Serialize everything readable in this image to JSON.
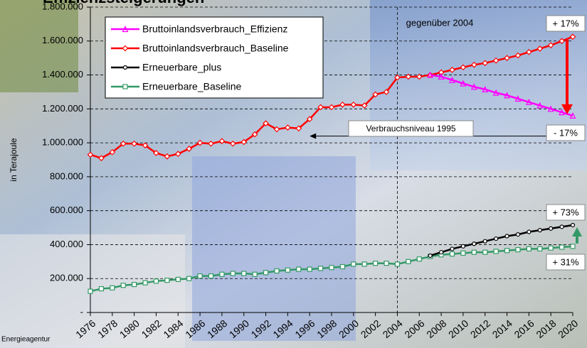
{
  "chart_data": {
    "type": "line",
    "title": "Effizienzsteigerungen",
    "y_label": "in Terajoule",
    "source": "Energieagentur",
    "x": [
      1976,
      1977,
      1978,
      1979,
      1980,
      1981,
      1982,
      1983,
      1984,
      1985,
      1986,
      1987,
      1988,
      1989,
      1990,
      1991,
      1992,
      1993,
      1994,
      1995,
      1996,
      1997,
      1998,
      1999,
      2000,
      2001,
      2002,
      2003,
      2004,
      2005,
      2006,
      2007,
      2008,
      2009,
      2010,
      2011,
      2012,
      2013,
      2014,
      2015,
      2016,
      2017,
      2018,
      2019,
      2020
    ],
    "xlim": [
      1976,
      2020
    ],
    "xticks": [
      1976,
      1978,
      1980,
      1982,
      1984,
      1986,
      1988,
      1990,
      1992,
      1994,
      1996,
      1998,
      2000,
      2002,
      2004,
      2006,
      2008,
      2010,
      2012,
      2014,
      2016,
      2018,
      2020
    ],
    "ylim": [
      0,
      1800000
    ],
    "yticks": [
      {
        "value": 0,
        "label": "-"
      },
      {
        "value": 200000,
        "label": "200.000"
      },
      {
        "value": 400000,
        "label": "400.000"
      },
      {
        "value": 600000,
        "label": "600.000"
      },
      {
        "value": 800000,
        "label": "800.000"
      },
      {
        "value": 1000000,
        "label": "1.000.000"
      },
      {
        "value": 1200000,
        "label": "1.200.000"
      },
      {
        "value": 1400000,
        "label": "1.400.000"
      },
      {
        "value": 1600000,
        "label": "1.600.000"
      },
      {
        "value": 1800000,
        "label": "1.800.000"
      }
    ],
    "grid": true,
    "legend": "upper left",
    "series": [
      {
        "name": "Bruttoinlandsverbrauch_Effizienz",
        "color": "#ff00ff",
        "marker": "triangle",
        "values": [
          null,
          null,
          null,
          null,
          null,
          null,
          null,
          null,
          null,
          null,
          null,
          null,
          null,
          null,
          null,
          null,
          null,
          null,
          null,
          null,
          null,
          null,
          null,
          null,
          null,
          null,
          null,
          null,
          null,
          null,
          null,
          1400000,
          1390000,
          1370000,
          1350000,
          1330000,
          1315000,
          1295000,
          1280000,
          1260000,
          1240000,
          1220000,
          1200000,
          1180000,
          1160000
        ]
      },
      {
        "name": "Bruttoinlandsverbrauch_Baseline",
        "color": "#ff0000",
        "marker": "diamond",
        "values": [
          930000,
          910000,
          945000,
          995000,
          995000,
          985000,
          940000,
          920000,
          935000,
          965000,
          1000000,
          995000,
          1010000,
          995000,
          1005000,
          1050000,
          1115000,
          1080000,
          1090000,
          1085000,
          1140000,
          1210000,
          1210000,
          1225000,
          1225000,
          1220000,
          1285000,
          1300000,
          1385000,
          1390000,
          1390000,
          1400000,
          1415000,
          1430000,
          1445000,
          1460000,
          1470000,
          1485000,
          1500000,
          1515000,
          1535000,
          1555000,
          1575000,
          1600000,
          1625000
        ]
      },
      {
        "name": "Erneuerbare_plus",
        "color": "#000000",
        "marker": "circle",
        "values": [
          null,
          null,
          null,
          null,
          null,
          null,
          null,
          null,
          null,
          null,
          null,
          null,
          null,
          null,
          null,
          null,
          null,
          null,
          null,
          null,
          null,
          null,
          null,
          null,
          null,
          null,
          null,
          null,
          null,
          null,
          null,
          335000,
          355000,
          375000,
          390000,
          405000,
          420000,
          435000,
          450000,
          460000,
          475000,
          485000,
          495000,
          505000,
          515000
        ]
      },
      {
        "name": "Erneuerbare_Baseline",
        "color": "#339966",
        "marker": "square",
        "values": [
          125000,
          140000,
          145000,
          160000,
          165000,
          175000,
          185000,
          190000,
          195000,
          200000,
          215000,
          215000,
          225000,
          230000,
          230000,
          225000,
          235000,
          245000,
          250000,
          255000,
          255000,
          260000,
          265000,
          270000,
          285000,
          285000,
          290000,
          290000,
          285000,
          300000,
          315000,
          330000,
          340000,
          345000,
          350000,
          355000,
          355000,
          360000,
          365000,
          370000,
          375000,
          375000,
          380000,
          385000,
          390000
        ]
      }
    ],
    "annotations": [
      "gegenüber 2004",
      "+ 17%",
      "- 17%",
      "Verbrauchsniveau 1995",
      "+ 73%",
      "+ 31%"
    ]
  }
}
